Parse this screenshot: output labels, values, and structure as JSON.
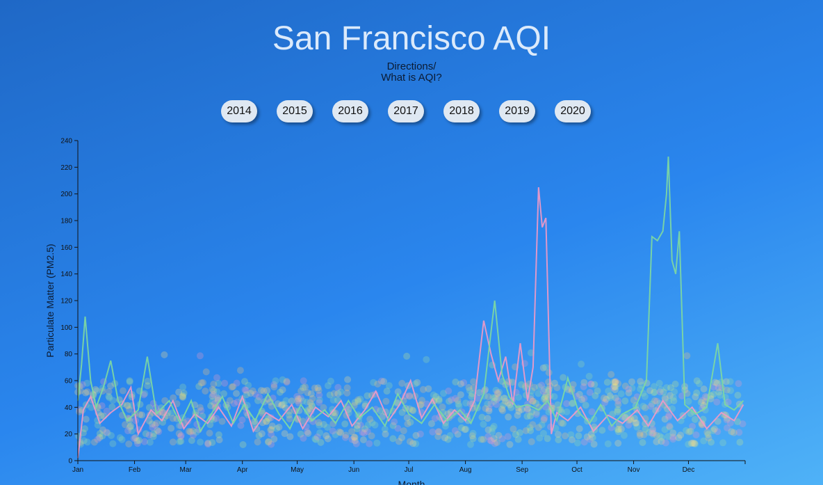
{
  "page": {
    "title": "San Francisco AQI"
  },
  "nav": {
    "directions": "Directions/",
    "about_aqi": "What is AQI?"
  },
  "years": [
    "2014",
    "2015",
    "2016",
    "2017",
    "2018",
    "2019",
    "2020"
  ],
  "colors": {
    "line_pink": "#f29ac6",
    "line_green": "#7fd9a0",
    "axis": "#111111"
  },
  "chart_data": {
    "type": "line",
    "title": "San Francisco AQI",
    "xlabel": "Month",
    "ylabel": "Particulate Matter (PM2.5)",
    "ylim": [
      0,
      240
    ],
    "yticks": [
      0,
      20,
      40,
      60,
      80,
      100,
      120,
      140,
      160,
      180,
      200,
      220,
      240
    ],
    "xticks": [
      "Jan",
      "Feb",
      "Mar",
      "Apr",
      "May",
      "Jun",
      "Jul",
      "Aug",
      "Sep",
      "Oct",
      "Nov",
      "Dec"
    ],
    "xlim_day": [
      0,
      365
    ],
    "grid": false,
    "series": [
      {
        "color": "#f29ac6",
        "points": [
          [
            0,
            2
          ],
          [
            3,
            38
          ],
          [
            7,
            48
          ],
          [
            12,
            28
          ],
          [
            18,
            36
          ],
          [
            24,
            42
          ],
          [
            29,
            55
          ],
          [
            33,
            20
          ],
          [
            40,
            38
          ],
          [
            46,
            30
          ],
          [
            52,
            45
          ],
          [
            58,
            24
          ],
          [
            64,
            35
          ],
          [
            71,
            28
          ],
          [
            77,
            40
          ],
          [
            84,
            26
          ],
          [
            90,
            48
          ],
          [
            96,
            22
          ],
          [
            103,
            36
          ],
          [
            110,
            30
          ],
          [
            117,
            42
          ],
          [
            123,
            24
          ],
          [
            130,
            40
          ],
          [
            137,
            33
          ],
          [
            144,
            45
          ],
          [
            150,
            26
          ],
          [
            157,
            38
          ],
          [
            163,
            52
          ],
          [
            170,
            30
          ],
          [
            176,
            42
          ],
          [
            182,
            60
          ],
          [
            188,
            32
          ],
          [
            194,
            46
          ],
          [
            200,
            28
          ],
          [
            206,
            38
          ],
          [
            212,
            30
          ],
          [
            217,
            45
          ],
          [
            222,
            105
          ],
          [
            226,
            80
          ],
          [
            230,
            60
          ],
          [
            234,
            78
          ],
          [
            238,
            42
          ],
          [
            242,
            88
          ],
          [
            246,
            45
          ],
          [
            249,
            70
          ],
          [
            252,
            205
          ],
          [
            254,
            175
          ],
          [
            256,
            182
          ],
          [
            259,
            20
          ],
          [
            262,
            36
          ],
          [
            268,
            30
          ],
          [
            275,
            40
          ],
          [
            282,
            22
          ],
          [
            290,
            34
          ],
          [
            298,
            28
          ],
          [
            306,
            38
          ],
          [
            312,
            26
          ],
          [
            320,
            45
          ],
          [
            328,
            30
          ],
          [
            336,
            40
          ],
          [
            344,
            24
          ],
          [
            352,
            36
          ],
          [
            359,
            30
          ],
          [
            364,
            42
          ]
        ]
      },
      {
        "color": "#7fd9a0",
        "points": [
          [
            0,
            45
          ],
          [
            2,
            72
          ],
          [
            4,
            108
          ],
          [
            7,
            60
          ],
          [
            10,
            40
          ],
          [
            14,
            55
          ],
          [
            18,
            75
          ],
          [
            22,
            45
          ],
          [
            27,
            30
          ],
          [
            33,
            38
          ],
          [
            38,
            78
          ],
          [
            43,
            35
          ],
          [
            50,
            45
          ],
          [
            56,
            28
          ],
          [
            62,
            45
          ],
          [
            67,
            22
          ],
          [
            73,
            35
          ],
          [
            79,
            48
          ],
          [
            85,
            28
          ],
          [
            91,
            42
          ],
          [
            97,
            30
          ],
          [
            104,
            50
          ],
          [
            110,
            35
          ],
          [
            116,
            24
          ],
          [
            122,
            42
          ],
          [
            128,
            30
          ],
          [
            135,
            38
          ],
          [
            141,
            28
          ],
          [
            148,
            45
          ],
          [
            154,
            32
          ],
          [
            161,
            40
          ],
          [
            168,
            26
          ],
          [
            175,
            50
          ],
          [
            181,
            35
          ],
          [
            188,
            28
          ],
          [
            195,
            42
          ],
          [
            202,
            30
          ],
          [
            209,
            38
          ],
          [
            215,
            28
          ],
          [
            222,
            50
          ],
          [
            228,
            120
          ],
          [
            232,
            65
          ],
          [
            236,
            48
          ],
          [
            240,
            40
          ],
          [
            246,
            42
          ],
          [
            252,
            38
          ],
          [
            257,
            45
          ],
          [
            262,
            30
          ],
          [
            268,
            62
          ],
          [
            274,
            36
          ],
          [
            280,
            28
          ],
          [
            286,
            42
          ],
          [
            292,
            26
          ],
          [
            298,
            35
          ],
          [
            305,
            40
          ],
          [
            311,
            60
          ],
          [
            314,
            168
          ],
          [
            317,
            165
          ],
          [
            320,
            172
          ],
          [
            322,
            200
          ],
          [
            323,
            228
          ],
          [
            325,
            150
          ],
          [
            327,
            140
          ],
          [
            329,
            172
          ],
          [
            332,
            42
          ],
          [
            338,
            35
          ],
          [
            344,
            40
          ],
          [
            350,
            88
          ],
          [
            354,
            42
          ],
          [
            359,
            38
          ],
          [
            364,
            45
          ]
        ]
      }
    ]
  }
}
